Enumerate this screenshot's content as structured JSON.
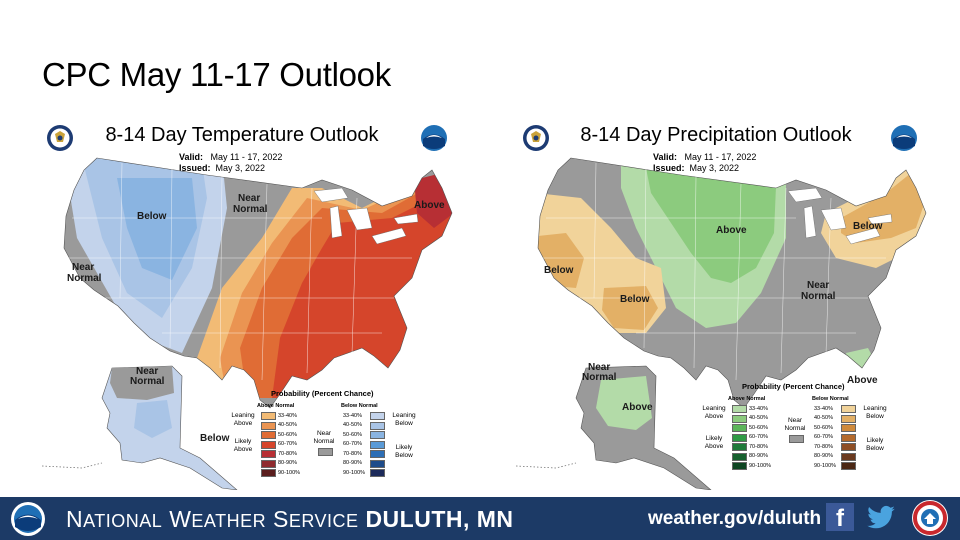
{
  "slide": {
    "title": "CPC May 11-17 Outlook"
  },
  "temperature": {
    "title": "8-14 Day Temperature Outlook",
    "valid_label": "Valid:",
    "valid_value": "May 11 - 17, 2022",
    "issued_label": "Issued:",
    "issued_value": "May 3, 2022",
    "regions": {
      "below": "Below",
      "near_normal_north_1": "Near",
      "near_normal_north_2": "Normal",
      "near_normal_west_1": "Near",
      "near_normal_west_2": "Normal",
      "above": "Above",
      "ak_near_1": "Near",
      "ak_near_2": "Normal",
      "ak_below": "Below"
    },
    "legend": {
      "title": "Probability (Percent Chance)",
      "above_header": "Above Normal",
      "below_header": "Below Normal",
      "leaning_above_1": "Leaning",
      "leaning_above_2": "Above",
      "likely_above_1": "Likely",
      "likely_above_2": "Above",
      "leaning_below_1": "Leaning",
      "leaning_below_2": "Below",
      "likely_below_1": "Likely",
      "likely_below_2": "Below",
      "near_1": "Near",
      "near_2": "Normal",
      "ranges": [
        "33-40%",
        "40-50%",
        "50-60%",
        "60-70%",
        "70-80%",
        "80-90%",
        "90-100%"
      ],
      "above_colors": [
        "#f2bb75",
        "#ea9452",
        "#e06c35",
        "#d5452b",
        "#b72f34",
        "#8e2a2e",
        "#5a1d1d"
      ],
      "below_colors": [
        "#c3d3eb",
        "#a9c4e6",
        "#8ab4e1",
        "#5a9ad6",
        "#2d6eb5",
        "#1f4c8a",
        "#1c2a5a"
      ],
      "near_color": "#9a9a9a"
    }
  },
  "precipitation": {
    "title": "8-14 Day Precipitation Outlook",
    "valid_label": "Valid:",
    "valid_value": "May 11 - 17, 2022",
    "issued_label": "Issued:",
    "issued_value": "May 3, 2022",
    "regions": {
      "above_central": "Above",
      "below_west": "Below",
      "below_sw": "Below",
      "below_ne": "Below",
      "near_1": "Near",
      "near_2": "Normal",
      "above_fl": "Above",
      "ak_near_1": "Near",
      "ak_near_2": "Normal",
      "ak_above": "Above"
    },
    "legend": {
      "title": "Probability (Percent Chance)",
      "above_header": "Above Normal",
      "below_header": "Below Normal",
      "leaning_above_1": "Leaning",
      "leaning_above_2": "Above",
      "likely_above_1": "Likely",
      "likely_above_2": "Above",
      "leaning_below_1": "Leaning",
      "leaning_below_2": "Below",
      "likely_below_1": "Likely",
      "likely_below_2": "Below",
      "near_1": "Near",
      "near_2": "Normal",
      "ranges": [
        "33-40%",
        "40-50%",
        "50-60%",
        "60-70%",
        "70-80%",
        "80-90%",
        "90-100%"
      ],
      "above_colors": [
        "#b3dba8",
        "#8ccb7e",
        "#5cb55a",
        "#2f9a45",
        "#1f7a3a",
        "#16602e",
        "#0e4522"
      ],
      "below_colors": [
        "#f1d39a",
        "#e3b066",
        "#cf8a3c",
        "#b46a2c",
        "#8e4e25",
        "#6b3a1f",
        "#4a2714"
      ],
      "near_color": "#9a9a9a"
    }
  },
  "footer": {
    "org_prefix_1": "N",
    "org_prefix_1_small": "ATIONAL",
    "org_prefix_2": "W",
    "org_prefix_2_small": "EATHER",
    "org_prefix_3": "S",
    "org_prefix_3_small": "ERVICE",
    "office": "DULUTH, MN",
    "website": "weather.gov/duluth",
    "facebook_icon": "facebook-icon",
    "twitter_icon": "twitter-icon"
  }
}
